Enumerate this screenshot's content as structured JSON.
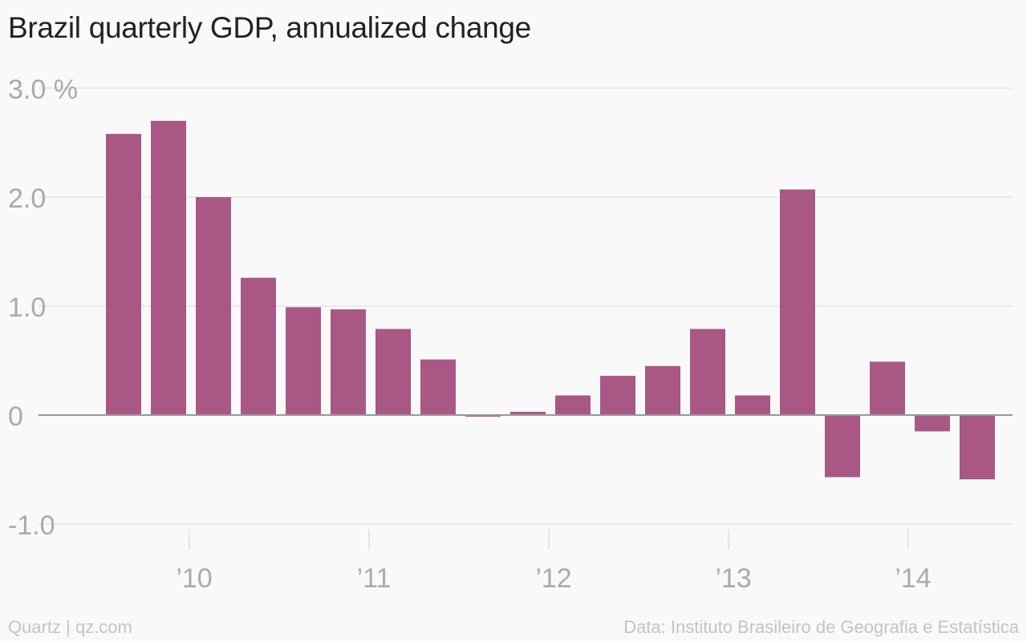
{
  "header": {
    "title": "Brazil quarterly GDP, annualized change"
  },
  "footer": {
    "source_left": "Quartz | qz.com",
    "source_right": "Data: Instituto Brasileiro de Geografia e Estatística"
  },
  "colors": {
    "bar": "#a95886",
    "grid": "#e6e6e6",
    "zero_line": "#999999",
    "tick_text": "#aaaaaa",
    "title": "#222222",
    "background": "#f9f9f9"
  },
  "chart_data": {
    "type": "bar",
    "title": "Brazil quarterly GDP, annualized change",
    "xlabel": "",
    "ylabel": "",
    "ylim": [
      -1.0,
      3.0
    ],
    "y_ticks": [
      {
        "value": 3.0,
        "label": "3.0 %"
      },
      {
        "value": 2.0,
        "label": "2.0"
      },
      {
        "value": 1.0,
        "label": "1.0"
      },
      {
        "value": 0,
        "label": "0"
      },
      {
        "value": -1.0,
        "label": "-1.0"
      }
    ],
    "x_year_labels": [
      "’10",
      "’11",
      "’12",
      "’13",
      "’14"
    ],
    "grid": true,
    "series": [
      {
        "values": [
          2.58,
          2.7,
          2.0,
          1.26,
          0.99,
          0.97,
          0.79,
          0.51,
          -0.01,
          0.03,
          0.18,
          0.36,
          0.45,
          0.79,
          0.18,
          2.07,
          -0.57,
          0.49,
          -0.15,
          -0.59
        ]
      }
    ]
  }
}
